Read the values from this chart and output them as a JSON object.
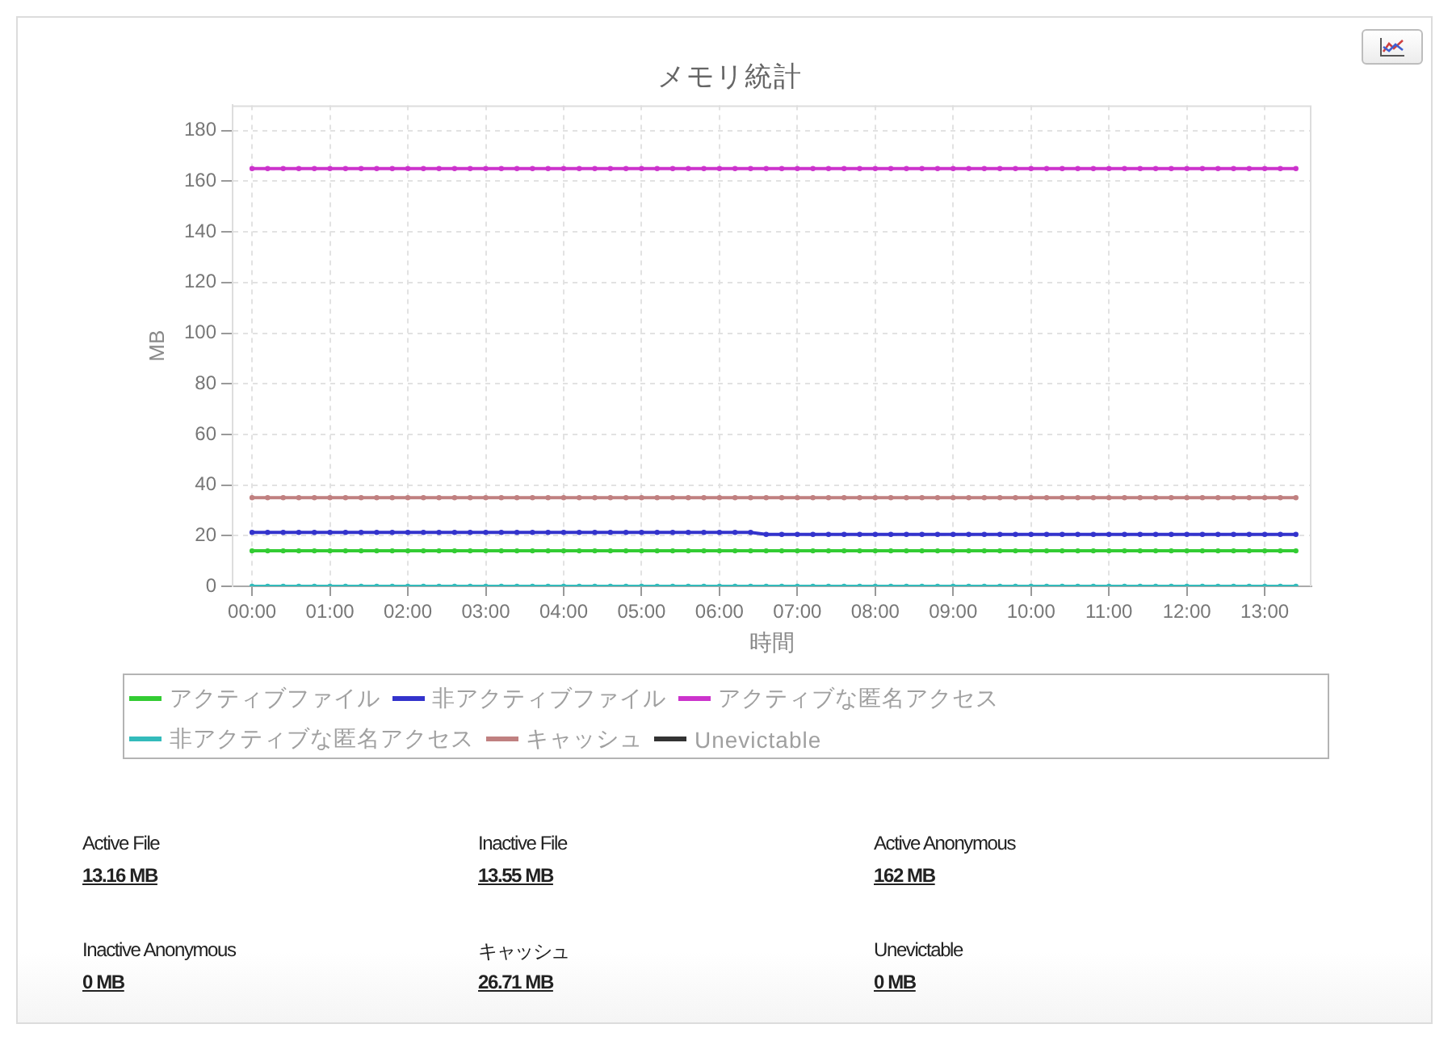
{
  "chart_data": [
    {
      "type": "line",
      "title": "メモリ統計",
      "xlabel": "時間",
      "ylabel": "MB",
      "x": [
        0,
        0.2,
        0.4,
        0.6,
        0.8,
        1,
        1.2,
        1.4,
        1.6,
        1.8,
        2,
        2.2,
        2.4,
        2.6,
        2.8,
        3,
        3.2,
        3.4,
        3.6,
        3.8,
        4,
        4.2,
        4.4,
        4.6,
        4.8,
        5,
        5.2,
        5.4,
        5.6,
        5.8,
        6,
        6.2,
        6.4,
        6.6,
        6.8,
        7,
        7.2,
        7.4,
        7.6,
        7.8,
        8,
        8.2,
        8.4,
        8.6,
        8.8,
        9,
        9.2,
        9.4,
        9.6,
        9.8,
        10,
        10.2,
        10.4,
        10.6,
        10.8,
        11,
        11.2,
        11.4,
        11.6,
        11.8,
        12,
        12.2,
        12.4,
        12.6,
        12.8,
        13,
        13.2,
        13.4
      ],
      "xlim": [
        -0.25,
        13.6
      ],
      "xticks": [
        {
          "value": 0,
          "label": "00:00"
        },
        {
          "value": 1,
          "label": "01:00"
        },
        {
          "value": 2,
          "label": "02:00"
        },
        {
          "value": 3,
          "label": "03:00"
        },
        {
          "value": 4,
          "label": "04:00"
        },
        {
          "value": 5,
          "label": "05:00"
        },
        {
          "value": 6,
          "label": "06:00"
        },
        {
          "value": 7,
          "label": "07:00"
        },
        {
          "value": 8,
          "label": "08:00"
        },
        {
          "value": 9,
          "label": "09:00"
        },
        {
          "value": 10,
          "label": "10:00"
        },
        {
          "value": 11,
          "label": "11:00"
        },
        {
          "value": 12,
          "label": "12:00"
        },
        {
          "value": 13,
          "label": "13:00"
        }
      ],
      "ylim": [
        0,
        190
      ],
      "yticks": [
        0,
        20,
        40,
        60,
        80,
        100,
        120,
        140,
        160,
        180
      ],
      "grid": true,
      "legend": "bottom",
      "marker": "circle",
      "series": [
        {
          "name": "アクティブファイル",
          "color": "#33cc33",
          "values": [
            14,
            14,
            14,
            14,
            14,
            14,
            14,
            14,
            14,
            14,
            14,
            14,
            14,
            14,
            14,
            14,
            14,
            14,
            14,
            14,
            14,
            14,
            14,
            14,
            14,
            14,
            14,
            14,
            14,
            14,
            14,
            14,
            14,
            14,
            14,
            14,
            14,
            14,
            14,
            14,
            14,
            14,
            14,
            14,
            14,
            14,
            14,
            14,
            14,
            14,
            14,
            14,
            14,
            14,
            14,
            14,
            14,
            14,
            14,
            14,
            14,
            14,
            14,
            14,
            14,
            14,
            14,
            14
          ]
        },
        {
          "name": "非アクティブファイル",
          "color": "#3333cc",
          "values": [
            21.3,
            21.3,
            21.3,
            21.3,
            21.3,
            21.3,
            21.3,
            21.3,
            21.3,
            21.3,
            21.3,
            21.3,
            21.3,
            21.3,
            21.3,
            21.3,
            21.3,
            21.3,
            21.3,
            21.3,
            21.3,
            21.3,
            21.3,
            21.3,
            21.3,
            21.3,
            21.3,
            21.3,
            21.3,
            21.3,
            21.3,
            21.3,
            21.3,
            20.5,
            20.5,
            20.5,
            20.5,
            20.5,
            20.5,
            20.5,
            20.5,
            20.5,
            20.5,
            20.5,
            20.5,
            20.5,
            20.5,
            20.5,
            20.5,
            20.5,
            20.5,
            20.5,
            20.5,
            20.5,
            20.5,
            20.5,
            20.5,
            20.5,
            20.5,
            20.5,
            20.5,
            20.5,
            20.5,
            20.5,
            20.5,
            20.5,
            20.5,
            20.5
          ]
        },
        {
          "name": "アクティブな匿名アクセス",
          "color": "#cc33cc",
          "values": [
            165,
            165,
            165,
            165,
            165,
            165,
            165,
            165,
            165,
            165,
            165,
            165,
            165,
            165,
            165,
            165,
            165,
            165,
            165,
            165,
            165,
            165,
            165,
            165,
            165,
            165,
            165,
            165,
            165,
            165,
            165,
            165,
            165,
            165,
            165,
            165,
            165,
            165,
            165,
            165,
            165,
            165,
            165,
            165,
            165,
            165,
            165,
            165,
            165,
            165,
            165,
            165,
            165,
            165,
            165,
            165,
            165,
            165,
            165,
            165,
            165,
            165,
            165,
            165,
            165,
            165,
            165,
            165
          ]
        },
        {
          "name": "非アクティブな匿名アクセス",
          "color": "#33bbbb",
          "values": [
            0,
            0,
            0,
            0,
            0,
            0,
            0,
            0,
            0,
            0,
            0,
            0,
            0,
            0,
            0,
            0,
            0,
            0,
            0,
            0,
            0,
            0,
            0,
            0,
            0,
            0,
            0,
            0,
            0,
            0,
            0,
            0,
            0,
            0,
            0,
            0,
            0,
            0,
            0,
            0,
            0,
            0,
            0,
            0,
            0,
            0,
            0,
            0,
            0,
            0,
            0,
            0,
            0,
            0,
            0,
            0,
            0,
            0,
            0,
            0,
            0,
            0,
            0,
            0,
            0,
            0,
            0,
            0
          ]
        },
        {
          "name": "キャッシュ",
          "color": "#c08080",
          "values": [
            35,
            35,
            35,
            35,
            35,
            35,
            35,
            35,
            35,
            35,
            35,
            35,
            35,
            35,
            35,
            35,
            35,
            35,
            35,
            35,
            35,
            35,
            35,
            35,
            35,
            35,
            35,
            35,
            35,
            35,
            35,
            35,
            35,
            35,
            35,
            35,
            35,
            35,
            35,
            35,
            35,
            35,
            35,
            35,
            35,
            35,
            35,
            35,
            35,
            35,
            35,
            35,
            35,
            35,
            35,
            35,
            35,
            35,
            35,
            35,
            35,
            35,
            35,
            35,
            35,
            35,
            35,
            35
          ]
        },
        {
          "name": "Unevictable",
          "color": "#333333",
          "values": [
            null,
            null,
            null,
            null,
            null,
            null,
            null,
            null,
            null,
            null,
            null,
            null,
            null,
            null,
            null,
            null,
            null,
            null,
            null,
            null,
            null,
            null,
            null,
            null,
            null,
            null,
            null,
            null,
            null,
            null,
            null,
            null,
            null,
            null,
            null,
            null,
            null,
            null,
            null,
            null,
            null,
            null,
            null,
            null,
            null,
            null,
            null,
            null,
            null,
            null,
            null,
            null,
            null,
            null,
            null,
            null,
            null,
            null,
            null,
            null,
            null,
            null,
            null,
            null,
            null,
            null,
            null,
            null
          ]
        }
      ]
    },
    {
      "type": "other",
      "annotations": [
        "Active File",
        "13.16 MB",
        "Inactive File",
        "13.55 MB",
        "Active Anonymous",
        "162 MB",
        "Inactive Anonymous",
        "0 MB",
        "キャッシュ",
        "26.71 MB",
        "Unevictable",
        "0 MB"
      ]
    }
  ]
}
